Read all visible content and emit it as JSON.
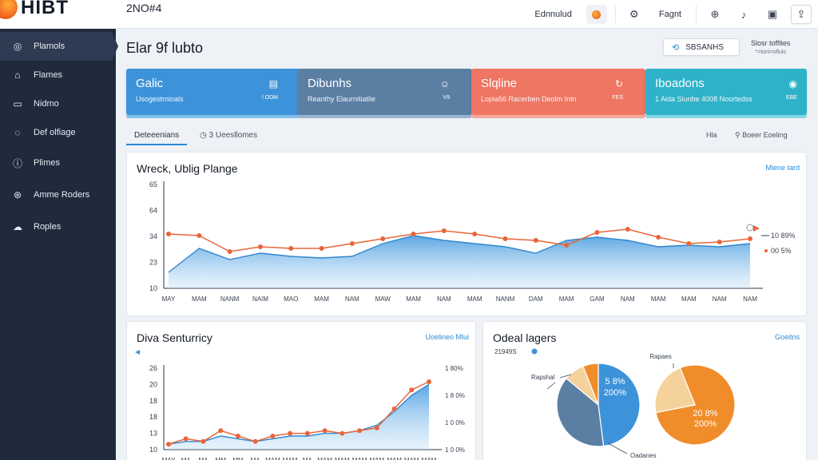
{
  "app": {
    "logo_text": "HIBT",
    "code": "2NO#4"
  },
  "topbar": {
    "link1": "Ednnulud",
    "link2": "Fagnt"
  },
  "sidebar": {
    "items": [
      {
        "label": "Plamols",
        "icon": "home-icon"
      },
      {
        "label": "Flames",
        "icon": "house-icon"
      },
      {
        "label": "Nidmo",
        "icon": "inbox-icon"
      },
      {
        "label": "Def olfiage",
        "icon": "compass-icon"
      },
      {
        "label": "Plimes",
        "icon": "info-icon"
      },
      {
        "label": "Amme Roders",
        "icon": "globe-icon"
      },
      {
        "label": "Roples",
        "icon": "cloud-icon"
      }
    ]
  },
  "main": {
    "title": "Elar 9f lubto",
    "search_label": "SBSANHS",
    "meta_title": "Slosr toffites",
    "meta_sub": "*=toni=ofluis"
  },
  "cards": [
    {
      "title": "Galic",
      "sub": "Usogestrnioals",
      "val": "l ODM",
      "color": "#3d93d9",
      "strip": "#7fbfee"
    },
    {
      "title": "Dibunhs",
      "sub": "Reanthy Elaurnitiatlie",
      "val": "V9",
      "color": "#5b7ea3",
      "strip": "#9bb4cc"
    },
    {
      "title": "Slqline",
      "sub": "Lopia56 Racerben Deolm Intn",
      "val": "FES",
      "color": "#ee7663",
      "strip": "#f6a89a"
    },
    {
      "title": "Iboadons",
      "sub": "1 Aida Siunbe 4008 Noortedss",
      "val": "EBE",
      "color": "#2fb2c9",
      "strip": "#86d6e4"
    }
  ],
  "tabs": {
    "active": "Deteeenians",
    "second": "3 Ueesllomes",
    "right1": "Hla",
    "right2": "Boeer Eoeling"
  },
  "panel_main": {
    "title": "Wreck, Ublig Plange",
    "link": "Mlene tard",
    "end_label1": "10 89%",
    "end_label2": "00 5%"
  },
  "panel_left": {
    "title": "Diva Senturricy",
    "link": "Uoelineo Mlui"
  },
  "panel_right": {
    "title": "Odeal lagers",
    "link": "Goeitns",
    "legend_label": "21949S",
    "label_pie1_left": "Rapshal",
    "label_pie1_bottom": "Oadanes",
    "label_pie2_top": "Rapaes",
    "pie1_value": "5 8%",
    "pie1_value2": "200%",
    "pie2_value": "20 8%",
    "pie2_value2": "200%"
  },
  "chart_data": [
    {
      "type": "line",
      "title": "Wreck, Ublig Plange",
      "categories": [
        "MAY",
        "MAM",
        "NANM",
        "NAIM",
        "MAO",
        "MAM",
        "NAM",
        "MAW",
        "MAM",
        "NAM",
        "MAM",
        "NANM",
        "DAM",
        "MAM",
        "GAM",
        "NAM",
        "MAM",
        "MAM",
        "NAM",
        "NAM"
      ],
      "y_ticks": [
        "10",
        "23",
        "34",
        "64",
        "65"
      ],
      "ylim": [
        0,
        65
      ],
      "series": [
        {
          "values": [
            34,
            33,
            23,
            26,
            25,
            25,
            28,
            31,
            34,
            36,
            34,
            31,
            30,
            27,
            35,
            37,
            32,
            28,
            29,
            31
          ]
        },
        {
          "values": [
            10,
            25,
            18,
            22,
            20,
            19,
            20,
            28,
            33,
            30,
            28,
            26,
            22,
            30,
            32,
            30,
            26,
            27,
            26,
            28
          ]
        }
      ]
    },
    {
      "type": "line",
      "title": "Diva Senturricy",
      "categories": [
        "MAY",
        "MA",
        "MA",
        "MM",
        "MM",
        "MA",
        "MAM",
        "MAM",
        "MA",
        "MAM",
        "MAM",
        "MAM",
        "MAM",
        "MAM",
        "MAM",
        "MAM"
      ],
      "y_ticks": [
        "10",
        "13",
        "18",
        "18",
        "20",
        "26"
      ],
      "right_ticks": [
        "1 80%",
        "1 8 0%",
        "1 0 0%",
        "1 0 0%"
      ],
      "ylim": [
        0,
        30
      ],
      "series": [
        {
          "values": [
            2,
            4,
            3,
            7,
            5,
            3,
            5,
            6,
            6,
            7,
            6,
            7,
            8,
            15,
            22,
            25
          ]
        },
        {
          "values": [
            2,
            3,
            3,
            5,
            4,
            3,
            4,
            5,
            5,
            6,
            6,
            7,
            9,
            14,
            20,
            24
          ]
        }
      ]
    },
    {
      "type": "pie",
      "title": "Odeal lagers",
      "slices": [
        {
          "value": 48,
          "color": "#3d93d9"
        },
        {
          "value": 38,
          "color": "#5b7ea3"
        },
        {
          "value": 8,
          "color": "#f5d29c"
        },
        {
          "value": 6,
          "color": "#f08d2a"
        }
      ]
    },
    {
      "type": "pie",
      "slices": [
        {
          "value": 78,
          "color": "#f08d2a"
        },
        {
          "value": 22,
          "color": "#f5d29c"
        }
      ]
    }
  ]
}
